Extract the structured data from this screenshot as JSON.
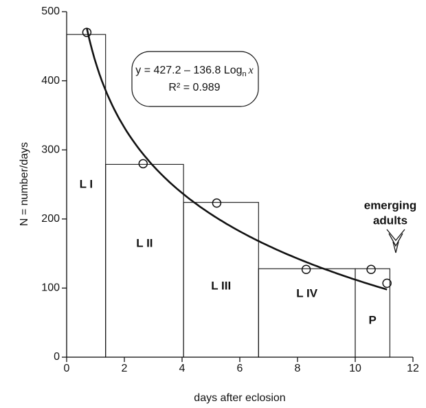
{
  "chart_data": {
    "type": "scatter",
    "x_label": "days after eclosion",
    "y_label": "N = number/days",
    "xlim": [
      0,
      12
    ],
    "xticks": [
      0,
      2,
      4,
      6,
      8,
      10,
      12
    ],
    "ylim": [
      0,
      500
    ],
    "yticks": [
      0,
      100,
      200,
      300,
      400,
      500
    ],
    "x": [
      0.7,
      2.65,
      5.2,
      8.3,
      10.55,
      11.1
    ],
    "values": [
      470,
      280,
      223,
      127,
      127,
      107
    ],
    "color": "#111111",
    "stages": {
      "bins": [
        0,
        1.35,
        4.05,
        6.65,
        10.0,
        11.2
      ],
      "values": [
        467,
        279,
        224,
        128,
        128
      ],
      "labels": [
        "L I",
        "L II",
        "L III",
        "L IV",
        "P"
      ]
    },
    "fit": {
      "intercept": 427.2,
      "slope": -136.8
    },
    "equation": {
      "prefix": "y = 427.2 – 136.8 Log",
      "subscript": "n",
      "variable": "x",
      "r2": "R² = 0.989"
    },
    "annotation": [
      "emerging",
      "adults"
    ]
  }
}
